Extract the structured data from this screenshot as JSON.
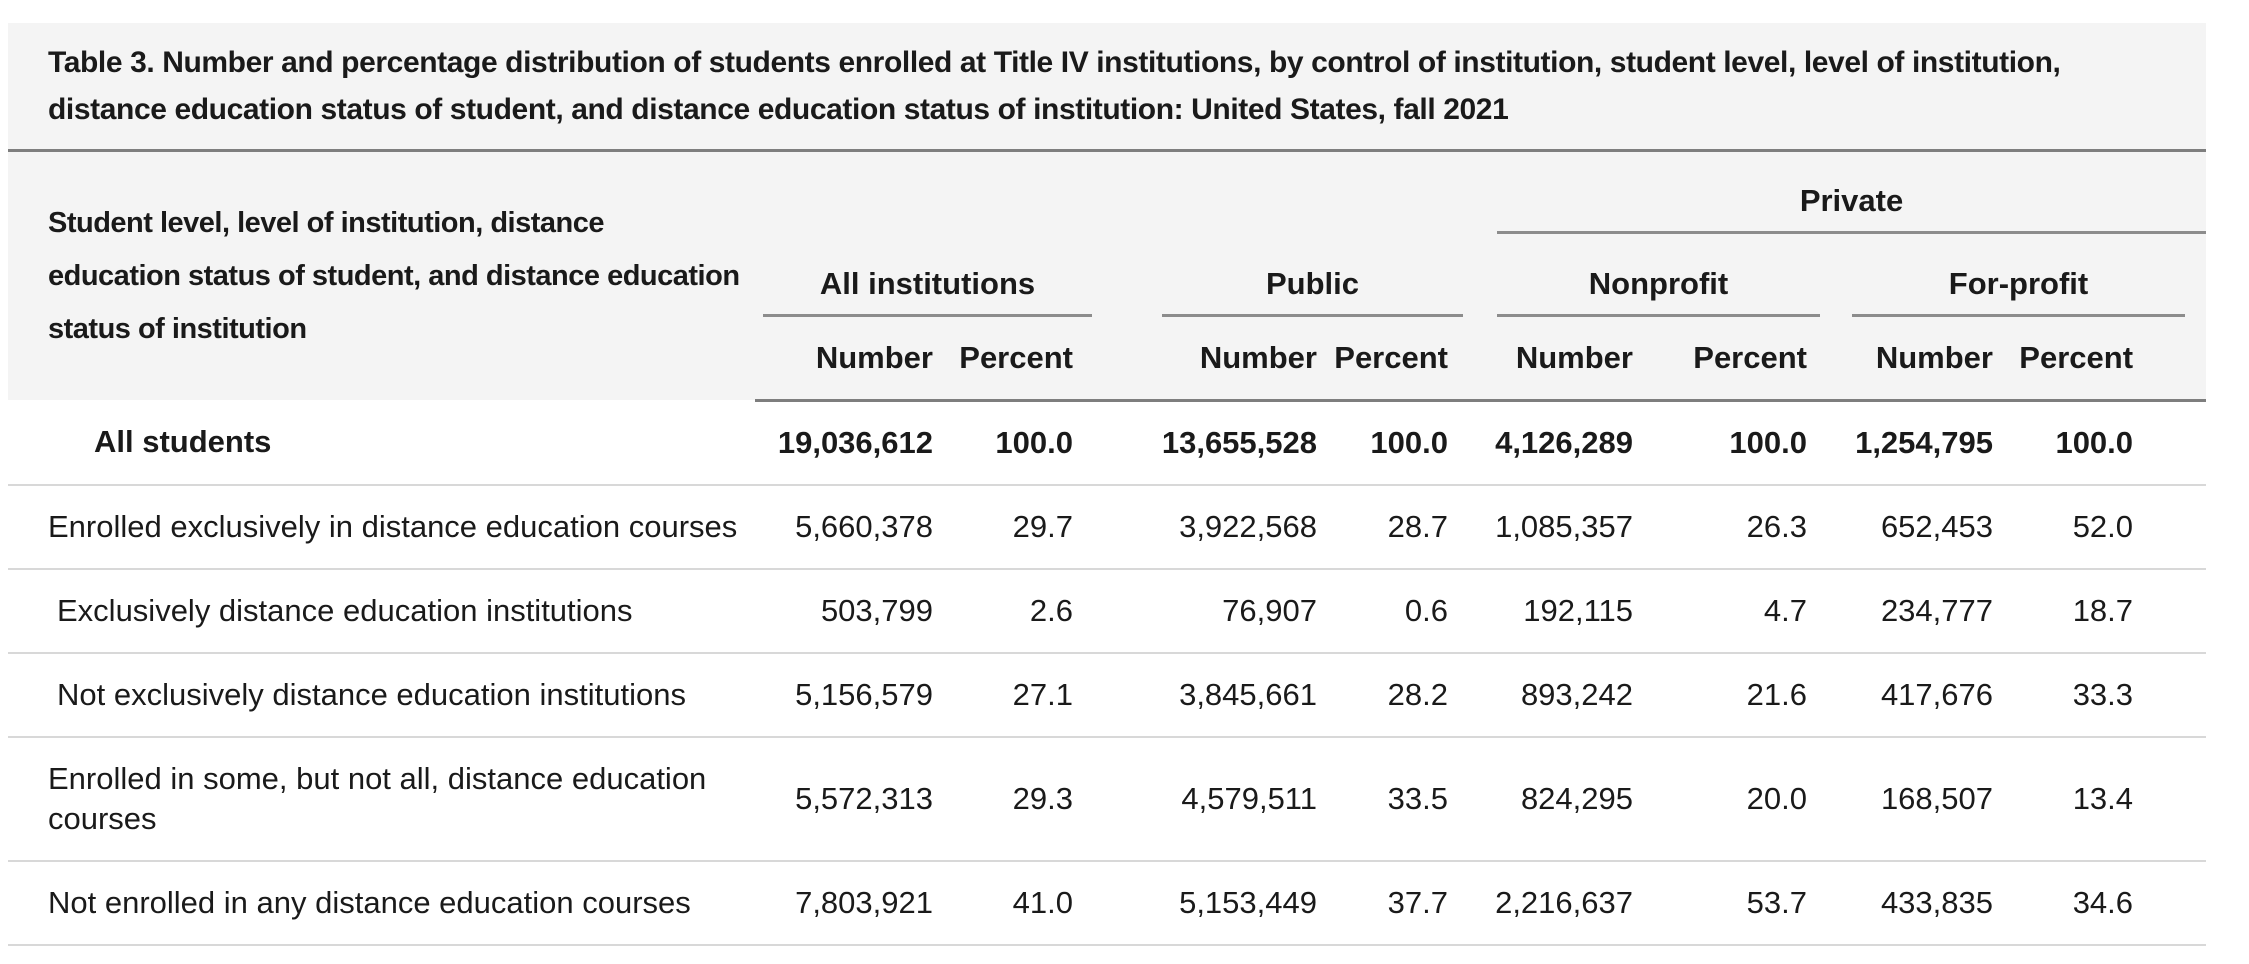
{
  "title": "Table 3. Number and percentage distribution of students enrolled at Title IV institutions, by control of institution, student level, level of institution, distance education status of student, and distance education status of institution: United States, fall 2021",
  "table": {
    "stub_header": "Student level, level of institution, distance education status of student, and distance education status of institution",
    "private_label": "Private",
    "col_groups": [
      {
        "label": "All institutions",
        "columns": [
          "Number",
          "Percent"
        ]
      },
      {
        "label": "Public",
        "columns": [
          "Number",
          "Percent"
        ]
      },
      {
        "label": "Nonprofit",
        "parent": "Private",
        "columns": [
          "Number",
          "Percent"
        ]
      },
      {
        "label": "For-profit",
        "parent": "Private",
        "columns": [
          "Number",
          "Percent"
        ]
      }
    ],
    "rows": [
      {
        "label": "All students",
        "bold": true,
        "indent": 2,
        "values": [
          "19,036,612",
          "100.0",
          "13,655,528",
          "100.0",
          "4,126,289",
          "100.0",
          "1,254,795",
          "100.0"
        ]
      },
      {
        "label": "Enrolled exclusively in distance education courses",
        "bold": false,
        "indent": 0,
        "values": [
          "5,660,378",
          "29.7",
          "3,922,568",
          "28.7",
          "1,085,357",
          "26.3",
          "652,453",
          "52.0"
        ]
      },
      {
        "label": "Exclusively distance education institutions",
        "bold": false,
        "indent": 1,
        "values": [
          "503,799",
          "2.6",
          "76,907",
          "0.6",
          "192,115",
          "4.7",
          "234,777",
          "18.7"
        ]
      },
      {
        "label": "Not exclusively distance education institutions",
        "bold": false,
        "indent": 1,
        "values": [
          "5,156,579",
          "27.1",
          "3,845,661",
          "28.2",
          "893,242",
          "21.6",
          "417,676",
          "33.3"
        ]
      },
      {
        "label": "Enrolled in some, but not all, distance education courses",
        "bold": false,
        "indent": 0,
        "values": [
          "5,572,313",
          "29.3",
          "4,579,511",
          "33.5",
          "824,295",
          "20.0",
          "168,507",
          "13.4"
        ]
      },
      {
        "label": "Not enrolled in any distance education courses",
        "bold": false,
        "indent": 0,
        "values": [
          "7,803,921",
          "41.0",
          "5,153,449",
          "37.7",
          "2,216,637",
          "53.7",
          "433,835",
          "34.6"
        ]
      }
    ]
  }
}
